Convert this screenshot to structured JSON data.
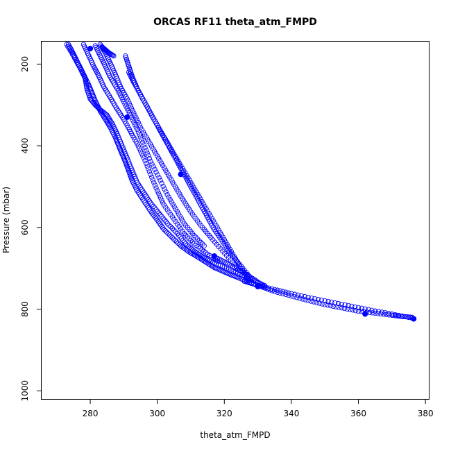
{
  "chart_data": {
    "type": "scatter",
    "title": "ORCAS RF11 theta_atm_FMPD",
    "xlabel": "theta_atm_FMPD",
    "ylabel": "Pressure (mbar)",
    "xlim": [
      265.5,
      381
    ],
    "ylim": [
      1020,
      145
    ],
    "y_reversed": true,
    "grid": false,
    "legend": "none",
    "xticks": [
      280,
      300,
      320,
      340,
      360,
      380
    ],
    "yticks": [
      200,
      400,
      600,
      800,
      1000
    ],
    "marker": "open-circle",
    "color": "#0000ff",
    "series": [
      {
        "x": [
          273.5,
          275,
          276.5,
          278,
          279.5,
          280.5,
          281.5,
          283,
          284.5,
          286,
          287.5,
          288.5,
          289.5,
          290.5,
          291.5,
          292.5,
          294,
          296,
          298,
          300,
          302,
          304.5,
          307,
          309.5,
          312,
          314.5,
          317,
          319.5,
          322,
          324.5,
          327.5,
          331,
          335,
          340,
          345,
          350,
          355,
          360,
          365,
          370,
          373,
          376
        ],
        "y": [
          152,
          175,
          200,
          225,
          250,
          270,
          290,
          315,
          335,
          355,
          380,
          400,
          420,
          440,
          462,
          485,
          510,
          535,
          560,
          582,
          605,
          625,
          645,
          660,
          672,
          685,
          698,
          707,
          716,
          724,
          735,
          745,
          757,
          768,
          779,
          789,
          797,
          805,
          810,
          815,
          818,
          820
        ]
      },
      {
        "x": [
          273,
          275,
          277,
          278.5,
          279,
          280,
          281.5,
          283,
          285,
          286.5,
          288,
          289.5,
          291,
          292.5,
          294,
          296,
          298,
          300.5,
          303,
          306,
          308.5,
          311,
          313.5,
          316.5,
          320,
          324,
          328,
          332
        ],
        "y": [
          152,
          180,
          210,
          235,
          260,
          285,
          300,
          312,
          325,
          345,
          370,
          400,
          430,
          460,
          490,
          515,
          540,
          565,
          590,
          615,
          640,
          658,
          672,
          685,
          697,
          712,
          728,
          742
        ]
      },
      {
        "x": [
          278,
          279.5,
          281,
          282.5,
          284,
          286,
          288,
          290,
          292,
          294,
          296,
          298,
          300,
          302,
          305,
          308,
          311,
          314.5,
          318
        ],
        "y": [
          152,
          178,
          205,
          228,
          255,
          282,
          310,
          335,
          365,
          395,
          430,
          470,
          510,
          545,
          580,
          615,
          640,
          662,
          683
        ]
      },
      {
        "x": [
          281.5,
          283,
          284.5,
          286,
          288,
          290,
          292,
          294,
          296,
          298,
          300.5,
          303,
          305.5,
          308,
          311,
          314
        ],
        "y": [
          155,
          180,
          205,
          232,
          260,
          292,
          325,
          360,
          398,
          438,
          478,
          520,
          555,
          590,
          620,
          645
        ]
      },
      {
        "x": [
          283,
          284.5,
          286,
          287.5,
          289,
          291,
          293,
          295,
          297.5,
          300,
          302.5,
          305,
          307.5,
          310,
          313,
          316,
          319.5,
          323,
          327
        ],
        "y": [
          152,
          172,
          198,
          225,
          255,
          285,
          320,
          355,
          390,
          425,
          460,
          495,
          530,
          562,
          595,
          625,
          658,
          690,
          720
        ]
      },
      {
        "x": [
          283.5,
          284.5,
          285.5,
          287
        ],
        "y": [
          158,
          165,
          172,
          180
        ]
      },
      {
        "x": [
          290.5,
          291.5,
          292.5,
          294,
          296,
          298,
          300,
          302.5,
          305,
          307.5,
          310,
          312.5,
          315,
          317.5,
          320,
          322.5,
          325,
          328
        ],
        "y": [
          180,
          205,
          230,
          260,
          290,
          320,
          350,
          385,
          420,
          455,
          490,
          525,
          560,
          595,
          630,
          665,
          700,
          735
        ]
      },
      {
        "x": [
          291.5,
          293,
          295,
          297,
          299,
          301,
          303,
          305,
          307,
          309,
          311,
          313,
          315,
          317,
          319.5,
          322,
          325,
          328
        ],
        "y": [
          220,
          245,
          275,
          305,
          335,
          365,
          395,
          425,
          455,
          485,
          515,
          545,
          575,
          605,
          635,
          665,
          695,
          725
        ]
      },
      {
        "x": [
          317,
          320,
          323,
          326,
          329,
          332
        ],
        "y": [
          672,
          684,
          698,
          712,
          728,
          745
        ]
      },
      {
        "x": [
          326,
          330,
          335,
          340,
          346,
          352,
          358,
          364,
          370,
          376
        ],
        "y": [
          732,
          742,
          752,
          762,
          773,
          783,
          793,
          803,
          812,
          822
        ]
      }
    ],
    "highlight_points": [
      {
        "x": 280,
        "y": 162
      },
      {
        "x": 291,
        "y": 330
      },
      {
        "x": 307,
        "y": 470
      },
      {
        "x": 317,
        "y": 670
      },
      {
        "x": 330,
        "y": 745
      },
      {
        "x": 362,
        "y": 812
      },
      {
        "x": 376.5,
        "y": 824
      }
    ]
  }
}
